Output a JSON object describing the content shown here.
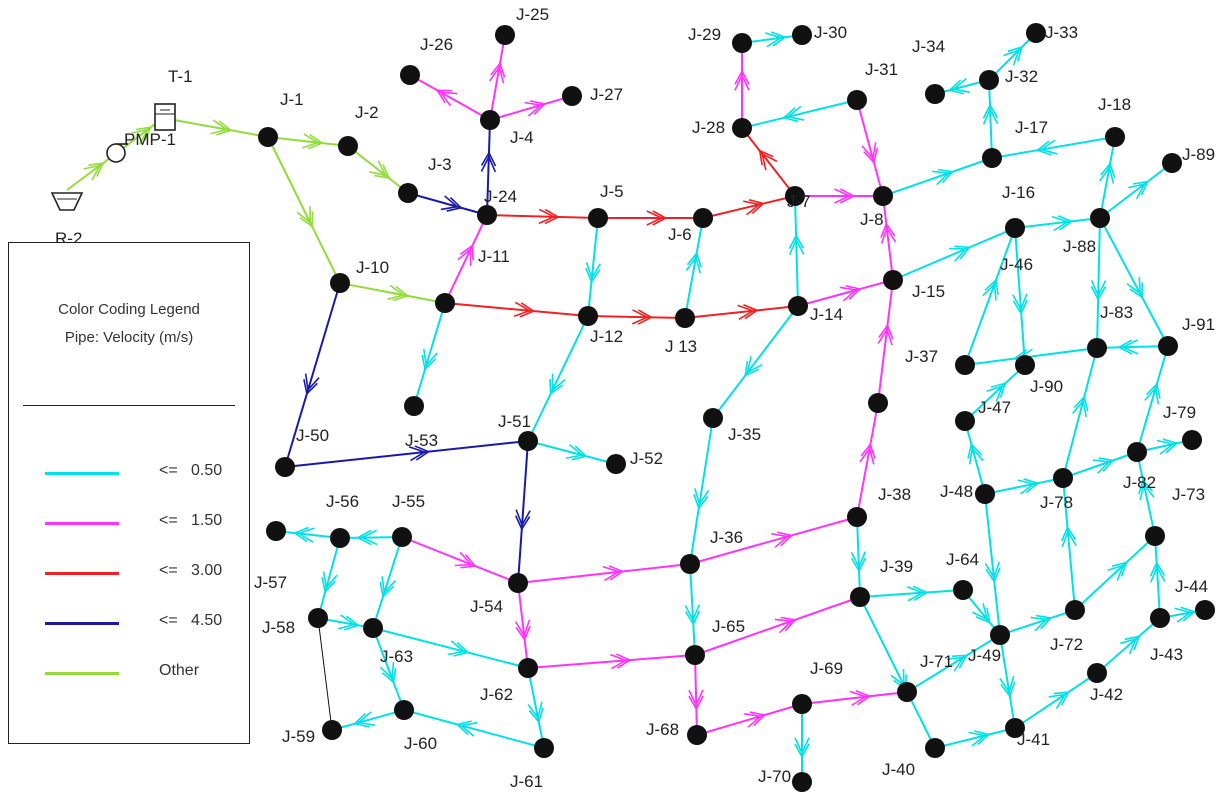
{
  "colors": {
    "cyan": "#00e0e6",
    "magenta": "#ff33ff",
    "red": "#ee2222",
    "blue": "#1a1aaa",
    "green": "#8fdc3a",
    "black": "#111111"
  },
  "facilities": {
    "tank": "T-1",
    "pump": "PMP-1",
    "reservoir": "R-2"
  },
  "legend": {
    "title1": "Color Coding Legend",
    "title2": "Pipe: Velocity (m/s)",
    "items": [
      {
        "text": "<=   0.50",
        "color": "#00e0e6"
      },
      {
        "text": "<=   1.50",
        "color": "#ff33ff"
      },
      {
        "text": "<=   3.00",
        "color": "#ee2222"
      },
      {
        "text": "<=   4.50",
        "color": "#1a1aaa"
      },
      {
        "text": "Other",
        "color": "#8fdc3a"
      }
    ]
  },
  "junctions": [
    "J-1",
    "J-2",
    "J-3",
    "J-4",
    "J-5",
    "J-6",
    "J-7",
    "J-8",
    "J-10",
    "J-11",
    "J-12",
    "J 13",
    "J-14",
    "J-15",
    "J-16",
    "J-17",
    "J-18",
    "J-24",
    "J-25",
    "J-26",
    "J-27",
    "J-28",
    "J-29",
    "J-30",
    "J-31",
    "J-32",
    "J-33",
    "J-34",
    "J-35",
    "J-36",
    "J-37",
    "J-38",
    "J-39",
    "J-40",
    "J-41",
    "J-42",
    "J-43",
    "J-44",
    "J-46",
    "J-47",
    "J-48",
    "J-49",
    "J-50",
    "J-51",
    "J-52",
    "J-53",
    "J-54",
    "J-55",
    "J-56",
    "J-57",
    "J-58",
    "J-59",
    "J-60",
    "J-61",
    "J-62",
    "J-63",
    "J-64",
    "J-65",
    "J-68",
    "J-69",
    "J-70",
    "J-71",
    "J-72",
    "J-73",
    "J-78",
    "J-79",
    "J-82",
    "J-83",
    "J-88",
    "J-89",
    "J-90",
    "J-91"
  ]
}
